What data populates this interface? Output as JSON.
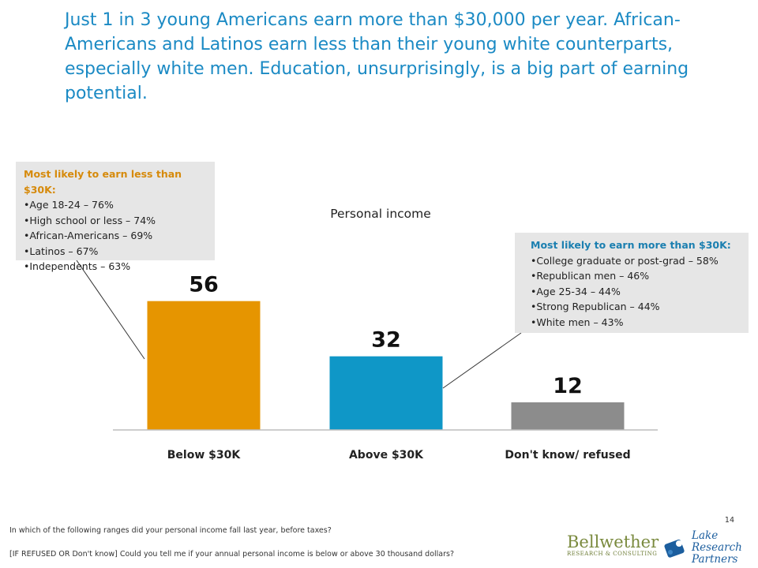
{
  "headline": "Just 1 in 3 young Americans earn more than $30,000 per year. African-Americans and Latinos earn less than their young white counterparts, especially white men. Education, unsurprisingly, is a big part of earning potential.",
  "callout_less": {
    "title": "Most likely to earn less than $30K:",
    "items": [
      "Age 18-24 – 76%",
      "High school or less – 74%",
      "African-Americans – 69%",
      "Latinos – 67%",
      "Independents  – 63%"
    ]
  },
  "callout_more": {
    "title": "Most likely to earn more than $30K:",
    "items": [
      "College graduate or post-grad – 58%",
      "Republican men – 46%",
      "Age 25-34 – 44%",
      "Strong Republican – 44%",
      "White men – 43%"
    ]
  },
  "chart_data": {
    "type": "bar",
    "title": "Personal income",
    "categories": [
      "Below $30K",
      "Above $30K",
      "Don't know/ refused"
    ],
    "values": [
      56,
      32,
      12
    ],
    "data_labels": [
      "56",
      "32",
      "12"
    ],
    "colors": [
      "#e69500",
      "#0f97c7",
      "#8c8c8c"
    ],
    "ylim": [
      0,
      60
    ],
    "grid": false,
    "legend": "none"
  },
  "footer": {
    "question1": "In which of the following ranges did your personal income fall last year, before taxes?",
    "question2": "[IF REFUSED OR Don't know] Could you tell me if your annual personal income is below or above 30 thousand dollars?",
    "page_number": "14"
  },
  "logos": {
    "bellwether_name": "Bellwether",
    "bellwether_sub": "RESEARCH & CONSULTING",
    "lake_line1": "Lake",
    "lake_line2": "Research",
    "lake_line3": "Partners",
    "lake_color": "#1c5e9e",
    "bellwether_color": "#7a8a3e"
  }
}
